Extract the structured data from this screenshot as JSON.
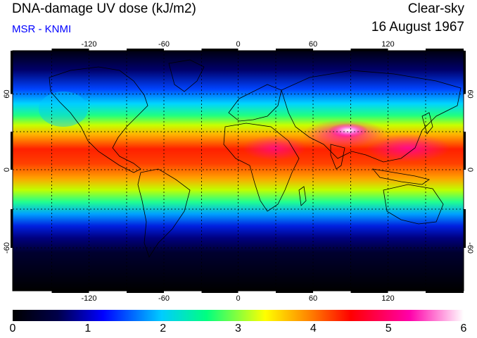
{
  "header": {
    "title": "DNA-damage UV dose (kJ/m2)",
    "subtitle": "MSR - KNMI",
    "sky": "Clear-sky",
    "date": "16 August 1967"
  },
  "map": {
    "lon_ticks": [
      "-120",
      "-60",
      "0",
      "60",
      "120"
    ],
    "lat_ticks_left": [
      "60",
      "0",
      "-60"
    ],
    "lat_ticks_right": [
      "60",
      "0",
      "-60"
    ],
    "colors": {
      "grid": "#000000",
      "coast": "#000000"
    }
  },
  "colorbar": {
    "labels": [
      "0",
      "1",
      "2",
      "3",
      "4",
      "5",
      "6"
    ],
    "colors": [
      "#000000",
      "#00004a",
      "#0000ff",
      "#00ccff",
      "#00ff80",
      "#ffff00",
      "#ff8000",
      "#ff0000",
      "#ff00aa",
      "#ffffff"
    ]
  }
}
